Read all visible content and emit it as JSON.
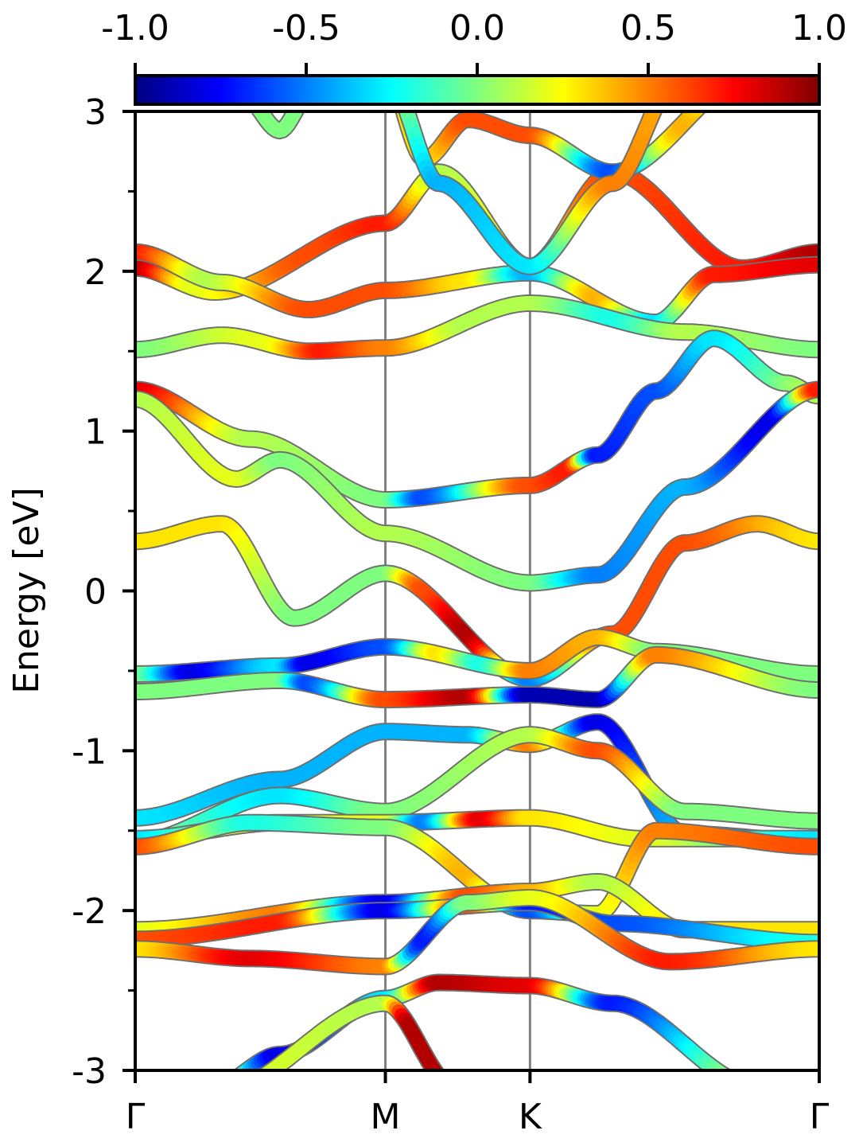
{
  "chart_data": {
    "type": "line",
    "subtype": "band-structure",
    "ylabel": "Energy [eV]",
    "ylim": [
      -3,
      3
    ],
    "yticks": [
      -3,
      -2,
      -1,
      0,
      1,
      2,
      3
    ],
    "yticks_minor": [
      -2.5,
      -1.5,
      -0.5,
      0.5,
      1.5,
      2.5
    ],
    "xlim": [
      0,
      4.73
    ],
    "xticks": [
      {
        "label": "Γ",
        "x": 0
      },
      {
        "label": "M",
        "x": 1.73
      },
      {
        "label": "K",
        "x": 2.73
      },
      {
        "label": "Γ",
        "x": 4.73
      }
    ],
    "path_separators": [
      1.73,
      2.73
    ],
    "colorbar": {
      "min": -1.0,
      "max": 1.0,
      "ticks": [
        -1.0,
        -0.5,
        0.0,
        0.5,
        1.0
      ],
      "tick_labels": [
        "-1.0",
        "-0.5",
        "0.0",
        "0.5",
        "1.0"
      ],
      "colormap": "jet",
      "position": "top"
    },
    "series": [
      {
        "values": [
          [
            0,
            2.02
          ],
          [
            0.55,
            1.87
          ],
          [
            1.73,
            2.3
          ],
          [
            2.1,
            2.62
          ],
          [
            2.73,
            2.03
          ],
          [
            3.3,
            2.62
          ],
          [
            4.2,
            2.02
          ],
          [
            4.73,
            2.12
          ]
        ],
        "c": [
          [
            0,
            0.9
          ],
          [
            0.4,
            0.2
          ],
          [
            1.2,
            0.6
          ],
          [
            1.73,
            0.7
          ],
          [
            2.1,
            0.1
          ],
          [
            2.73,
            0.3
          ],
          [
            3.3,
            0.6
          ],
          [
            4.2,
            0.7
          ],
          [
            4.73,
            0.9
          ]
        ]
      },
      {
        "values": [
          [
            0,
            2.12
          ],
          [
            0.6,
            1.93
          ],
          [
            1.2,
            1.76
          ],
          [
            1.73,
            1.88
          ],
          [
            2.73,
            1.99
          ],
          [
            3.6,
            1.68
          ],
          [
            4.0,
            1.98
          ],
          [
            4.73,
            2.04
          ]
        ],
        "c": [
          [
            0,
            0.7
          ],
          [
            0.5,
            0.1
          ],
          [
            1.2,
            0.6
          ],
          [
            1.73,
            0.6
          ],
          [
            2.3,
            0.3
          ],
          [
            2.73,
            -0.4
          ],
          [
            3.2,
            0.4
          ],
          [
            3.6,
            -0.3
          ],
          [
            4.0,
            0.7
          ],
          [
            4.73,
            0.8
          ]
        ]
      },
      {
        "values": [
          [
            0,
            1.51
          ],
          [
            0.6,
            1.6
          ],
          [
            1.2,
            1.5
          ],
          [
            1.73,
            1.52
          ],
          [
            2.73,
            1.8
          ],
          [
            3.8,
            1.62
          ],
          [
            4.73,
            1.51
          ]
        ],
        "c": [
          [
            0,
            0.0
          ],
          [
            0.9,
            0.2
          ],
          [
            1.3,
            0.7
          ],
          [
            1.73,
            0.5
          ],
          [
            2.3,
            0.1
          ],
          [
            2.73,
            0.1
          ],
          [
            3.3,
            -0.2
          ],
          [
            3.8,
            0.1
          ],
          [
            4.73,
            0.0
          ]
        ]
      },
      {
        "values": [
          [
            0,
            1.26
          ],
          [
            0.8,
            0.95
          ],
          [
            1.73,
            0.57
          ],
          [
            2.73,
            0.66
          ],
          [
            3.2,
            0.85
          ],
          [
            3.6,
            1.25
          ],
          [
            4.0,
            1.58
          ],
          [
            4.5,
            1.3
          ],
          [
            4.73,
            1.22
          ]
        ],
        "c": [
          [
            0,
            0.8
          ],
          [
            0.8,
            0.1
          ],
          [
            1.73,
            0.0
          ],
          [
            2.0,
            -0.6
          ],
          [
            2.73,
            0.6
          ],
          [
            3.0,
            0.7
          ],
          [
            3.2,
            -0.7
          ],
          [
            3.6,
            -0.6
          ],
          [
            4.0,
            -0.3
          ],
          [
            4.73,
            0.1
          ]
        ]
      },
      {
        "values": [
          [
            0,
            1.2
          ],
          [
            0.7,
            0.7
          ],
          [
            1.0,
            0.82
          ],
          [
            1.73,
            0.36
          ],
          [
            2.73,
            0.05
          ],
          [
            3.2,
            0.1
          ],
          [
            3.8,
            0.65
          ],
          [
            4.73,
            1.26
          ]
        ],
        "c": [
          [
            0,
            0.1
          ],
          [
            0.7,
            0.2
          ],
          [
            1.0,
            0.0
          ],
          [
            1.73,
            0.1
          ],
          [
            2.73,
            0.0
          ],
          [
            3.2,
            -0.5
          ],
          [
            3.8,
            -0.4
          ],
          [
            4.4,
            -0.8
          ],
          [
            4.73,
            0.7
          ]
        ]
      },
      {
        "values": [
          [
            0,
            0.31
          ],
          [
            0.6,
            0.42
          ],
          [
            1.1,
            -0.17
          ],
          [
            1.73,
            0.11
          ],
          [
            2.73,
            -0.55
          ],
          [
            3.3,
            -0.27
          ],
          [
            3.8,
            0.3
          ],
          [
            4.3,
            0.42
          ],
          [
            4.73,
            0.31
          ]
        ],
        "c": [
          [
            0,
            0.3
          ],
          [
            0.6,
            0.3
          ],
          [
            1.1,
            0.0
          ],
          [
            1.73,
            0.0
          ],
          [
            2.0,
            0.6
          ],
          [
            2.3,
            0.9
          ],
          [
            2.73,
            -0.5
          ],
          [
            3.3,
            0.6
          ],
          [
            3.8,
            0.6
          ],
          [
            4.73,
            0.3
          ]
        ]
      },
      {
        "values": [
          [
            0,
            -0.52
          ],
          [
            1.0,
            -0.47
          ],
          [
            1.73,
            -0.35
          ],
          [
            2.73,
            -0.5
          ],
          [
            3.2,
            -0.29
          ],
          [
            3.6,
            -0.38
          ],
          [
            4.73,
            -0.52
          ]
        ],
        "c": [
          [
            0,
            0.0
          ],
          [
            0.4,
            -0.8
          ],
          [
            1.0,
            -0.3
          ],
          [
            1.2,
            -0.8
          ],
          [
            1.73,
            -0.6
          ],
          [
            2.1,
            0.3
          ],
          [
            2.4,
            -0.2
          ],
          [
            2.73,
            0.5
          ],
          [
            3.2,
            0.4
          ],
          [
            3.6,
            0.0
          ],
          [
            4.73,
            0.0
          ]
        ]
      },
      {
        "values": [
          [
            0,
            -0.63
          ],
          [
            1.0,
            -0.56
          ],
          [
            1.73,
            -0.68
          ],
          [
            2.73,
            -0.65
          ],
          [
            3.2,
            -0.68
          ],
          [
            3.6,
            -0.4
          ],
          [
            4.73,
            -0.62
          ]
        ],
        "c": [
          [
            0,
            0.0
          ],
          [
            1.0,
            0.0
          ],
          [
            1.2,
            -0.6
          ],
          [
            1.73,
            0.6
          ],
          [
            2.3,
            0.9
          ],
          [
            2.73,
            -0.9
          ],
          [
            3.2,
            -0.9
          ],
          [
            3.6,
            0.5
          ],
          [
            4.73,
            0.0
          ]
        ]
      },
      {
        "values": [
          [
            0,
            -1.42
          ],
          [
            1.0,
            -1.18
          ],
          [
            1.73,
            -0.88
          ],
          [
            2.3,
            -0.9
          ],
          [
            2.73,
            -0.96
          ],
          [
            3.2,
            -0.82
          ],
          [
            3.8,
            -1.52
          ],
          [
            4.73,
            -1.57
          ]
        ],
        "c": [
          [
            0,
            -0.3
          ],
          [
            1.0,
            -0.4
          ],
          [
            1.73,
            -0.4
          ],
          [
            2.3,
            -0.4
          ],
          [
            2.73,
            0.5
          ],
          [
            3.2,
            -0.8
          ],
          [
            3.8,
            -0.4
          ],
          [
            4.73,
            -0.5
          ]
        ]
      },
      {
        "values": [
          [
            0,
            -1.57
          ],
          [
            1.0,
            -1.28
          ],
          [
            1.73,
            -1.38
          ],
          [
            2.73,
            -0.9
          ],
          [
            3.2,
            -1.0
          ],
          [
            3.8,
            -1.38
          ],
          [
            4.73,
            -1.44
          ]
        ],
        "c": [
          [
            0,
            0.0
          ],
          [
            1.0,
            -0.3
          ],
          [
            1.73,
            0.0
          ],
          [
            2.73,
            0.1
          ],
          [
            3.2,
            0.6
          ],
          [
            3.8,
            0.0
          ],
          [
            4.73,
            0.0
          ]
        ]
      },
      {
        "values": [
          [
            0,
            -1.55
          ],
          [
            1.0,
            -1.45
          ],
          [
            1.73,
            -1.45
          ],
          [
            2.73,
            -1.42
          ],
          [
            3.5,
            -1.55
          ],
          [
            4.73,
            -1.55
          ]
        ],
        "c": [
          [
            0,
            -0.3
          ],
          [
            0.8,
            0.2
          ],
          [
            1.73,
            0.2
          ],
          [
            2.0,
            -0.5
          ],
          [
            2.4,
            0.8
          ],
          [
            2.73,
            0.3
          ],
          [
            3.5,
            0.2
          ],
          [
            4.73,
            -0.3
          ]
        ]
      },
      {
        "values": [
          [
            0,
            -1.6
          ],
          [
            0.8,
            -1.45
          ],
          [
            1.73,
            -1.48
          ],
          [
            2.73,
            -2.0
          ],
          [
            3.2,
            -2.02
          ],
          [
            3.6,
            -1.5
          ],
          [
            4.73,
            -1.6
          ]
        ],
        "c": [
          [
            0,
            0.6
          ],
          [
            0.8,
            -0.2
          ],
          [
            1.73,
            0.0
          ],
          [
            2.3,
            0.4
          ],
          [
            2.73,
            -0.6
          ],
          [
            3.2,
            0.2
          ],
          [
            3.6,
            0.5
          ],
          [
            4.73,
            0.6
          ]
        ]
      },
      {
        "values": [
          [
            0,
            -2.12
          ],
          [
            1.73,
            -1.95
          ],
          [
            2.73,
            -1.88
          ],
          [
            3.2,
            -1.82
          ],
          [
            3.8,
            -2.12
          ],
          [
            4.73,
            -2.12
          ]
        ],
        "c": [
          [
            0,
            0.2
          ],
          [
            1.0,
            0.5
          ],
          [
            1.73,
            -0.8
          ],
          [
            2.3,
            0.6
          ],
          [
            2.73,
            0.4
          ],
          [
            3.2,
            0.1
          ],
          [
            3.8,
            0.3
          ],
          [
            4.73,
            0.3
          ]
        ]
      },
      {
        "values": [
          [
            0,
            -2.18
          ],
          [
            1.73,
            -2.0
          ],
          [
            2.73,
            -1.95
          ],
          [
            3.3,
            -2.08
          ],
          [
            4.73,
            -2.2
          ]
        ],
        "c": [
          [
            0,
            0.6
          ],
          [
            1.0,
            0.7
          ],
          [
            1.73,
            -0.8
          ],
          [
            2.3,
            0.6
          ],
          [
            2.73,
            -0.7
          ],
          [
            3.3,
            -0.6
          ],
          [
            4.73,
            -0.2
          ]
        ]
      },
      {
        "values": [
          [
            0,
            -2.24
          ],
          [
            0.8,
            -2.3
          ],
          [
            1.73,
            -2.35
          ],
          [
            2.3,
            -1.95
          ],
          [
            2.73,
            -1.92
          ],
          [
            3.7,
            -2.32
          ],
          [
            4.73,
            -2.24
          ]
        ],
        "c": [
          [
            0,
            0.3
          ],
          [
            0.8,
            0.8
          ],
          [
            1.73,
            0.5
          ],
          [
            2.0,
            -0.7
          ],
          [
            2.3,
            0.0
          ],
          [
            2.73,
            0.2
          ],
          [
            3.7,
            0.7
          ],
          [
            4.73,
            0.3
          ]
        ]
      },
      {
        "values": [
          [
            0.55,
            -3.1
          ],
          [
            1.0,
            -2.9
          ],
          [
            1.73,
            -2.55
          ],
          [
            2.1,
            -2.45
          ],
          [
            2.73,
            -2.47
          ],
          [
            3.3,
            -2.58
          ],
          [
            4.3,
            -3.1
          ]
        ],
        "c": [
          [
            0.55,
            0.3
          ],
          [
            1.0,
            -0.8
          ],
          [
            1.73,
            -0.3
          ],
          [
            2.1,
            0.9
          ],
          [
            2.73,
            0.8
          ],
          [
            3.3,
            -0.7
          ],
          [
            4.3,
            0.1
          ]
        ]
      },
      {
        "values": [
          [
            0.55,
            -3.15
          ],
          [
            1.73,
            -2.58
          ],
          [
            2.2,
            -3.1
          ]
        ],
        "c": [
          [
            0.55,
            0.2
          ],
          [
            1.73,
            0.1
          ],
          [
            1.9,
            0.9
          ],
          [
            2.2,
            0.9
          ]
        ]
      },
      {
        "values": [
          [
            0.75,
            3.1
          ],
          [
            1.0,
            2.88
          ],
          [
            1.2,
            3.1
          ]
        ],
        "c": [
          [
            0.75,
            0.0
          ],
          [
            1.2,
            0.0
          ]
        ]
      },
      {
        "values": [
          [
            1.73,
            3.25
          ],
          [
            2.0,
            2.7
          ],
          [
            2.3,
            2.95
          ],
          [
            2.73,
            2.85
          ],
          [
            3.3,
            2.62
          ],
          [
            4.3,
            3.25
          ]
        ],
        "c": [
          [
            1.73,
            0.3
          ],
          [
            2.0,
            0.3
          ],
          [
            2.3,
            0.6
          ],
          [
            2.73,
            0.6
          ],
          [
            3.3,
            -0.6
          ],
          [
            3.8,
            0.4
          ],
          [
            4.3,
            -0.3
          ]
        ]
      },
      {
        "values": [
          [
            1.73,
            3.25
          ],
          [
            2.1,
            2.55
          ],
          [
            2.73,
            2.03
          ],
          [
            3.3,
            2.55
          ],
          [
            3.75,
            3.2
          ]
        ],
        "c": [
          [
            1.73,
            0.2
          ],
          [
            2.1,
            -0.4
          ],
          [
            2.73,
            -0.3
          ],
          [
            3.3,
            0.5
          ],
          [
            3.75,
            0.4
          ]
        ]
      }
    ]
  }
}
